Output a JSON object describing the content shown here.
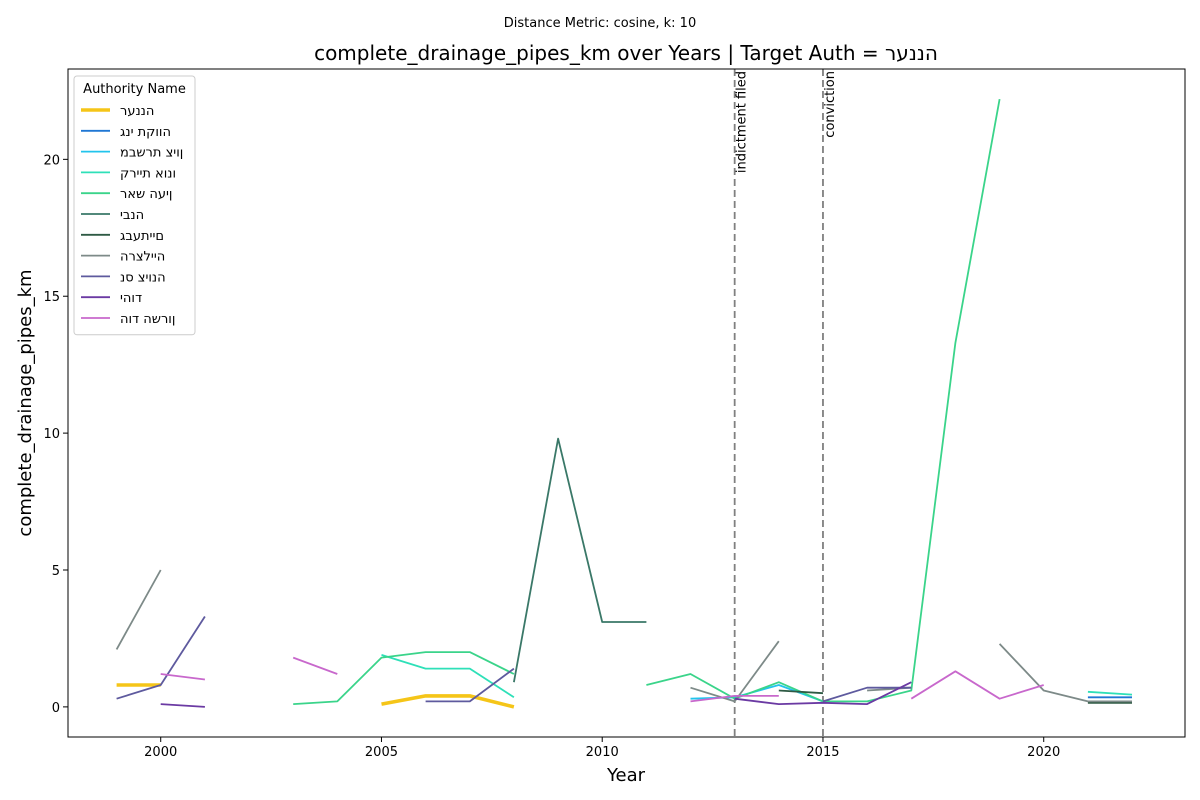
{
  "chart_data": {
    "type": "line",
    "suptitle": "Distance Metric: cosine, k: 10",
    "title": "complete_drainage_pipes_km over Years | Target Auth = הננער",
    "xlabel": "Year",
    "ylabel": "complete_drainage_pipes_km",
    "xlim": [
      1997.9,
      2023.2
    ],
    "ylim": [
      -1.1,
      23.3
    ],
    "x_ticks": [
      2000,
      2005,
      2010,
      2015,
      2020
    ],
    "y_ticks": [
      0,
      5,
      10,
      15,
      20
    ],
    "grid": false,
    "legend_title": "Authority Name",
    "legend_position": "upper-left",
    "events": [
      {
        "x": 2013,
        "label": "indictment filed"
      },
      {
        "x": 2015,
        "label": "conviction"
      }
    ],
    "series": [
      {
        "name": "הננער",
        "color": "#f5c518",
        "width": 3.6,
        "points": [
          [
            1999,
            0.8
          ],
          [
            2000,
            0.8
          ],
          [
            2005,
            0.1
          ],
          [
            2006,
            0.4
          ],
          [
            2007,
            0.4
          ],
          [
            2008,
            0.0
          ]
        ]
      },
      {
        "name": "הווקת ינג",
        "color": "#1f77d4",
        "width": 1.8,
        "points": [
          [
            2021,
            0.35
          ],
          [
            2022,
            0.35
          ]
        ]
      },
      {
        "name": "ןויצ תרשבמ",
        "color": "#22c4ec",
        "width": 1.8,
        "points": [
          [
            2012,
            0.3
          ],
          [
            2013,
            0.35
          ],
          [
            2014,
            0.8
          ],
          [
            2015,
            0.2
          ]
        ]
      },
      {
        "name": "ונוא תיירק",
        "color": "#2ee0b8",
        "width": 1.8,
        "points": [
          [
            2005,
            1.9
          ],
          [
            2006,
            1.4
          ],
          [
            2007,
            1.4
          ],
          [
            2008,
            0.35
          ],
          [
            2021,
            0.55
          ],
          [
            2022,
            0.45
          ]
        ]
      },
      {
        "name": "ןיעה שאר",
        "color": "#3ad48a",
        "width": 1.8,
        "points": [
          [
            2003,
            0.1
          ],
          [
            2004,
            0.2
          ],
          [
            2005,
            1.8
          ],
          [
            2006,
            2.0
          ],
          [
            2007,
            2.0
          ],
          [
            2008,
            1.2
          ],
          [
            2011,
            0.8
          ],
          [
            2012,
            1.2
          ],
          [
            2013,
            0.3
          ],
          [
            2014,
            0.9
          ],
          [
            2015,
            0.2
          ],
          [
            2016,
            0.2
          ],
          [
            2017,
            0.6
          ],
          [
            2018,
            13.3
          ],
          [
            2019,
            22.2
          ]
        ]
      },
      {
        "name": "הנבי",
        "color": "#3a7868",
        "width": 1.8,
        "points": [
          [
            2008,
            0.9
          ],
          [
            2009,
            9.8
          ],
          [
            2010,
            3.1
          ],
          [
            2011,
            3.1
          ]
        ]
      },
      {
        "name": "םייתעבג",
        "color": "#2e5a44",
        "width": 1.8,
        "points": [
          [
            2014,
            0.6
          ],
          [
            2015,
            0.5
          ],
          [
            2021,
            0.15
          ],
          [
            2022,
            0.15
          ]
        ]
      },
      {
        "name": "היילצרה",
        "color": "#7d8a88",
        "width": 1.8,
        "points": [
          [
            1999,
            2.1
          ],
          [
            2000,
            5.0
          ],
          [
            2012,
            0.7
          ],
          [
            2013,
            0.2
          ],
          [
            2014,
            2.4
          ],
          [
            2016,
            0.6
          ],
          [
            2017,
            0.7
          ],
          [
            2019,
            2.3
          ],
          [
            2020,
            0.6
          ],
          [
            2021,
            0.2
          ],
          [
            2022,
            0.2
          ]
        ]
      },
      {
        "name": "הנויצ סנ",
        "color": "#5e5a9e",
        "width": 1.8,
        "points": [
          [
            1999,
            0.3
          ],
          [
            2000,
            0.8
          ],
          [
            2001,
            3.3
          ],
          [
            2006,
            0.2
          ],
          [
            2007,
            0.2
          ],
          [
            2008,
            1.4
          ],
          [
            2015,
            0.2
          ],
          [
            2016,
            0.7
          ],
          [
            2017,
            0.7
          ]
        ]
      },
      {
        "name": "דוהי",
        "color": "#6b3aa3",
        "width": 1.8,
        "points": [
          [
            2000,
            0.1
          ],
          [
            2001,
            0.0
          ],
          [
            2013,
            0.3
          ],
          [
            2014,
            0.1
          ],
          [
            2015,
            0.15
          ],
          [
            2016,
            0.1
          ],
          [
            2017,
            0.9
          ]
        ]
      },
      {
        "name": "ןורשה דוה",
        "color": "#c868cc",
        "width": 1.8,
        "points": [
          [
            2000,
            1.2
          ],
          [
            2001,
            1.0
          ],
          [
            2003,
            1.8
          ],
          [
            2004,
            1.2
          ],
          [
            2012,
            0.2
          ],
          [
            2013,
            0.4
          ],
          [
            2014,
            0.4
          ],
          [
            2017,
            0.3
          ],
          [
            2018,
            1.3
          ],
          [
            2019,
            0.3
          ],
          [
            2020,
            0.8
          ]
        ]
      }
    ]
  }
}
